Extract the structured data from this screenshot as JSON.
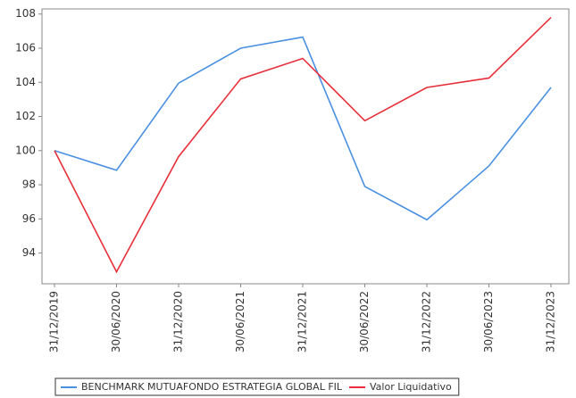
{
  "chart_data": {
    "type": "line",
    "categories": [
      "31/12/2019",
      "30/06/2020",
      "31/12/2020",
      "30/06/2021",
      "31/12/2021",
      "30/06/2022",
      "31/12/2022",
      "30/06/2023",
      "31/12/2023"
    ],
    "series": [
      {
        "name": "BENCHMARK MUTUAFONDO ESTRATEGIA GLOBAL FIL",
        "color": "#4a90e2",
        "values": [
          100,
          98.85,
          103.95,
          106.0,
          106.65,
          97.9,
          95.95,
          99.1,
          103.7
        ]
      },
      {
        "name": "Valor Liquidativo",
        "color": "#e8303a",
        "values": [
          100,
          92.9,
          99.65,
          104.2,
          105.4,
          101.75,
          103.7,
          104.25,
          107.8
        ]
      }
    ],
    "ylim": [
      92.2,
      108.3
    ],
    "yticks": [
      94,
      96,
      98,
      100,
      102,
      104,
      106,
      108
    ],
    "legend": "bottom"
  }
}
